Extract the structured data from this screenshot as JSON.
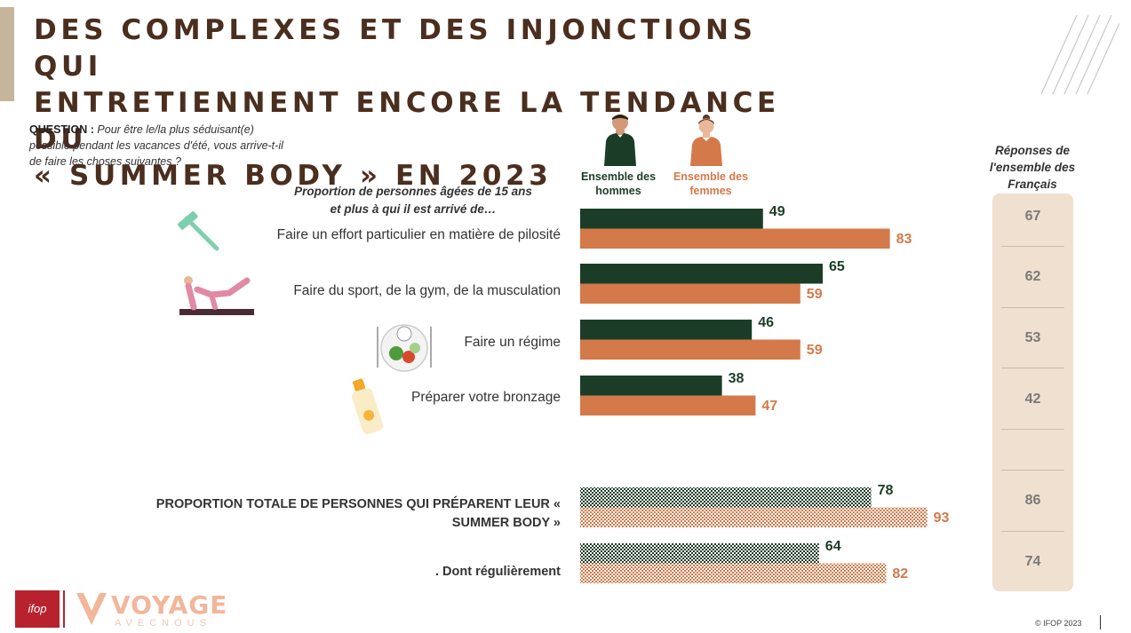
{
  "title": "DES COMPLEXES ET DES INJONCTIONS QUI\nENTRETIENNENT ENCORE LA TENDANCE DU\n« SUMMER BODY » EN 2023",
  "question": {
    "label": "QUESTION :",
    "text": "Pour être le/la plus séduisant(e) possible pendant les vacances d'été, vous arrive-t-il de faire les choses suivantes ?"
  },
  "proportion_label": "Proportion de personnes âgées de 15 ans et plus à qui il est arrivé de…",
  "legend": {
    "men": "Ensemble des hommes",
    "women": "Ensemble des femmes"
  },
  "responses_title": "Réponses de l'ensemble des Français",
  "colors": {
    "men": "#1b3d27",
    "women": "#d4794a",
    "title": "#4a2e1e",
    "panel": "#efe0cf"
  },
  "icons": [
    "razor-icon",
    "yoga-mat-icon",
    "diet-plate-icon",
    "sunscreen-icon",
    "man-icon",
    "woman-icon"
  ],
  "chart_data": {
    "type": "bar",
    "orientation": "horizontal",
    "categories": [
      "Faire un effort particulier en matière de pilosité",
      "Faire du sport, de la gym, de la musculation",
      "Faire un régime",
      "Préparer votre bronzage",
      "PROPORTION TOTALE DE PERSONNES QUI PRÉPARENT LEUR « SUMMER BODY »",
      ". Dont régulièrement"
    ],
    "series": [
      {
        "name": "Ensemble des hommes",
        "values": [
          49,
          65,
          46,
          38,
          78,
          64
        ]
      },
      {
        "name": "Ensemble des femmes",
        "values": [
          83,
          59,
          59,
          47,
          93,
          82
        ]
      }
    ],
    "ensemble": [
      67,
      62,
      53,
      42,
      86,
      74
    ],
    "pattern_categories": [
      4,
      5
    ],
    "xlim": [
      0,
      100
    ]
  },
  "footer": {
    "copyright": "© IFOP 2023",
    "ifop": "ifop",
    "brand": "VOYAGE",
    "brand_sub": "AVECNOUS"
  }
}
